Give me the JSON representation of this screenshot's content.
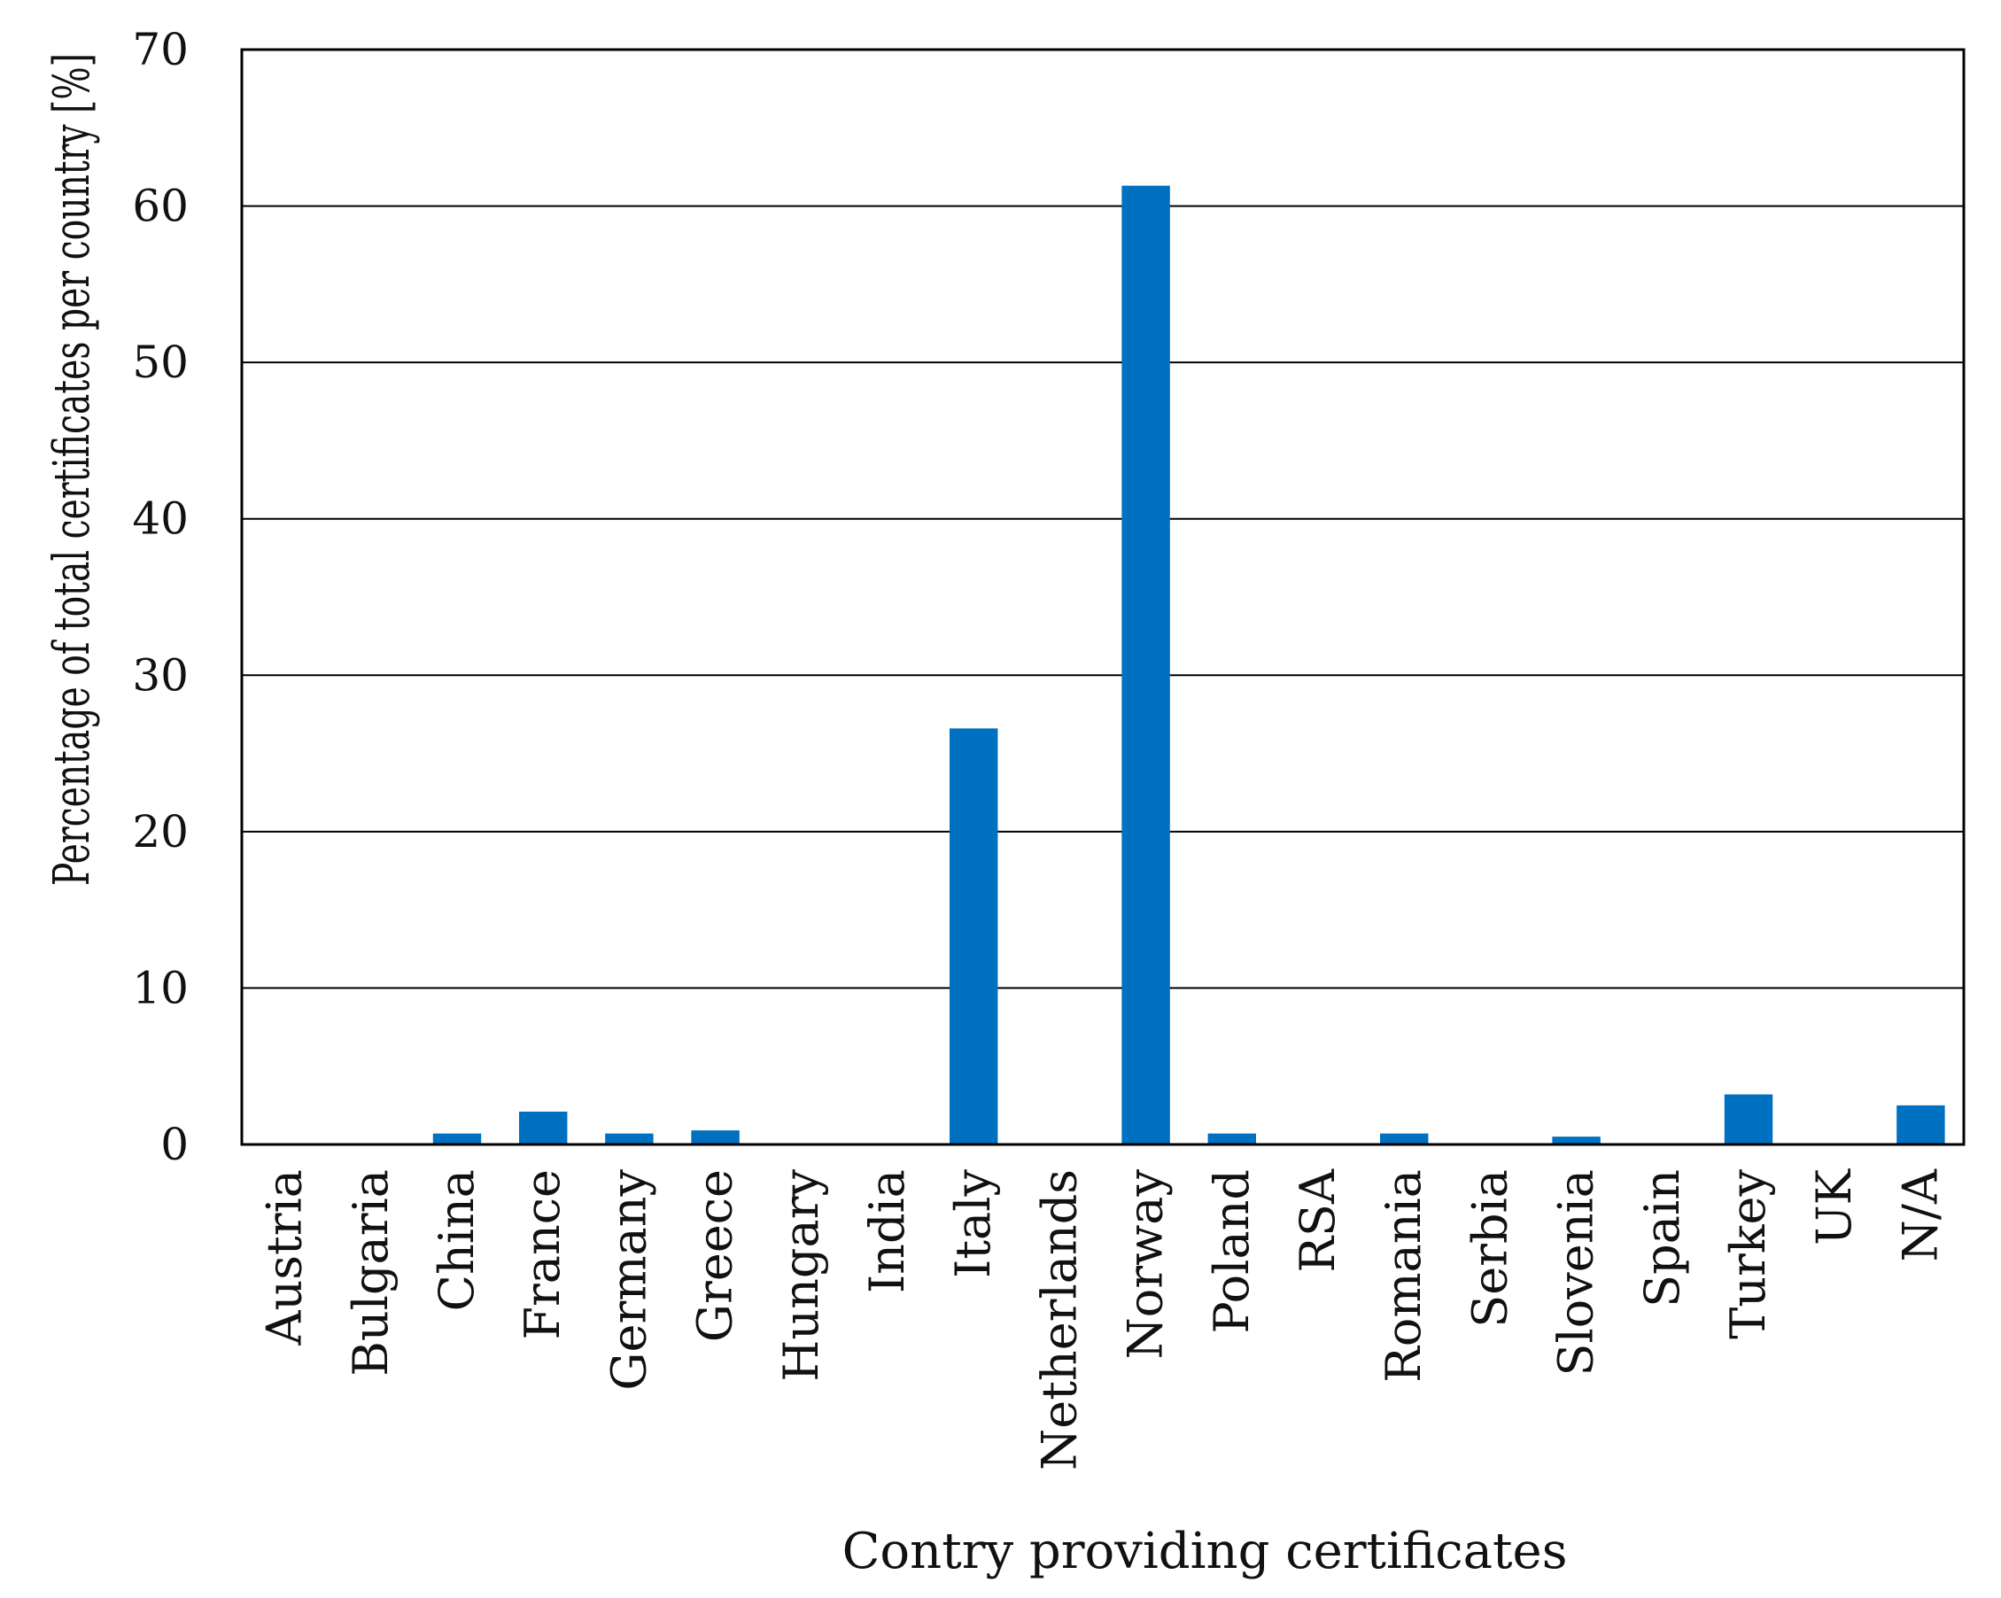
{
  "chart_data": {
    "type": "bar",
    "title": "",
    "xlabel": "Contry providing certificates",
    "ylabel": "Percentage of total certificates per country [%]",
    "ylim": [
      0,
      70
    ],
    "yticks": [
      "0",
      "10",
      "20",
      "30",
      "40",
      "50",
      "60",
      "70"
    ],
    "grid": "horizontal",
    "legend": "none",
    "bar_color": "#0070C0",
    "categories": [
      "Austria",
      "Bulgaria",
      "China",
      "France",
      "Germany",
      "Greece",
      "Hungary",
      "India",
      "Italy",
      "Netherlands",
      "Norway",
      "Poland",
      "RSA",
      "Romania",
      "Serbia",
      "Slovenia",
      "Spain",
      "Turkey",
      "UK",
      "N/A"
    ],
    "values": [
      0,
      0,
      0.7,
      2.1,
      0.7,
      0.9,
      0,
      0,
      26.6,
      0,
      61.3,
      0.7,
      0,
      0.7,
      0,
      0.5,
      0,
      3.2,
      0,
      2.5
    ]
  }
}
